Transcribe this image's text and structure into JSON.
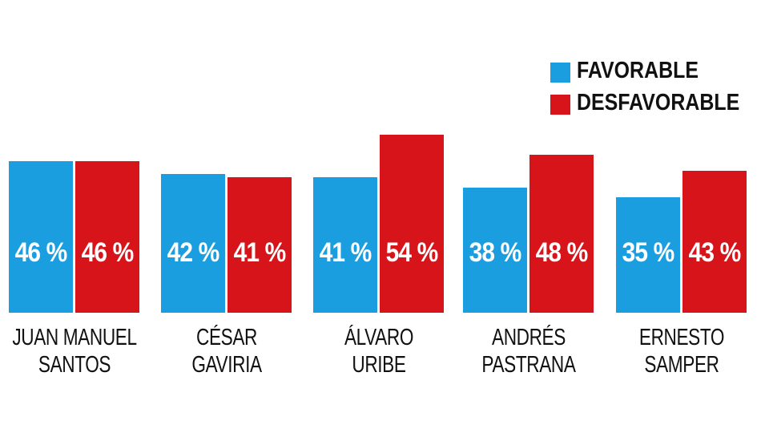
{
  "chart_data": {
    "type": "bar",
    "title": "",
    "xlabel": "",
    "ylabel": "",
    "ylim": [
      0,
      60
    ],
    "grid": false,
    "legend_position": "top-right",
    "categories": [
      [
        "JUAN MANUEL",
        "SANTOS"
      ],
      [
        "CÉSAR",
        "GAVIRIA"
      ],
      [
        "ÁLVARO",
        "URIBE"
      ],
      [
        "ANDRÉS",
        "PASTRANA"
      ],
      [
        "ERNESTO",
        "SAMPER"
      ]
    ],
    "series": [
      {
        "name": "FAVORABLE",
        "color": "#1a9ee0",
        "values": [
          46,
          42,
          41,
          38,
          35
        ],
        "labels": [
          "46 %",
          "42 %",
          "41 %",
          "38 %",
          "35 %"
        ]
      },
      {
        "name": "DESFAVORABLE",
        "color": "#d7141a",
        "values": [
          46,
          41,
          54,
          48,
          43
        ],
        "labels": [
          "46 %",
          "41 %",
          "54 %",
          "48 %",
          "43 %"
        ]
      }
    ]
  }
}
